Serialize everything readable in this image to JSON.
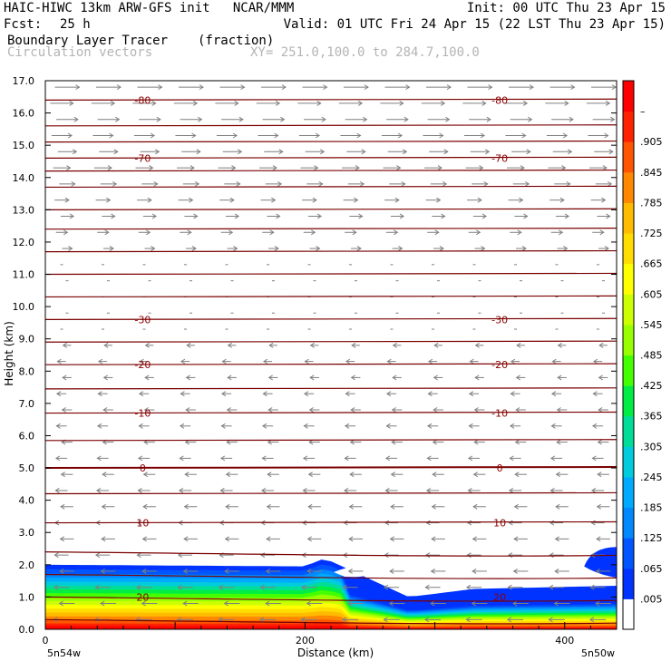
{
  "header": {
    "title": "HAIC-HIWC 13km ARW-GFS init   NCAR/MMM",
    "init": "Init: 00 UTC Thu 23 Apr 15",
    "fcst_label": "Fcst:",
    "fcst_value": "25 h",
    "valid": "Valid: 01 UTC Fri 24 Apr 15 (22 LST Thu 23 Apr 15)",
    "field": "Boundary Layer Tracer",
    "field_units": "(fraction)",
    "vectors": "Circulation vectors",
    "xy": "XY= 251.0,100.0 to 284.7,100.0"
  },
  "chart_data": {
    "type": "heatmap",
    "title": "Boundary Layer Tracer (fraction)",
    "xlabel": "Distance (km)",
    "ylabel": "Height (km)",
    "xlim": [
      0,
      440
    ],
    "ylim": [
      0,
      17
    ],
    "x_ticks": [
      {
        "value": 0,
        "label": "0"
      },
      {
        "value": 200,
        "label": "200"
      },
      {
        "value": 400,
        "label": "400"
      }
    ],
    "x_end_labels": {
      "left": "5n54w",
      "right": "5n50w"
    },
    "y_ticks": [
      "0.0",
      "1.0",
      "2.0",
      "3.0",
      "4.0",
      "5.0",
      "6.0",
      "7.0",
      "8.0",
      "9.0",
      "10.0",
      "11.0",
      "12.0",
      "13.0",
      "14.0",
      "15.0",
      "16.0",
      "17.0"
    ],
    "colorbar": {
      "labels": [
        ".005",
        ".065",
        ".125",
        ".185",
        ".245",
        ".305",
        ".365",
        ".425",
        ".485",
        ".545",
        ".605",
        ".665",
        ".725",
        ".785",
        ".845",
        ".905",
        "–"
      ],
      "colors": [
        "#ffffff",
        "#0033ff",
        "#0055ff",
        "#0088ff",
        "#00aaff",
        "#00ccdd",
        "#00dd99",
        "#00ee44",
        "#44ff00",
        "#99ff00",
        "#ccff00",
        "#ffff00",
        "#ffdd00",
        "#ffbb00",
        "#ff8800",
        "#ff5500",
        "#ff2200",
        "#ff0000"
      ]
    },
    "tracer_top_km": [
      {
        "x": 0,
        "y": 2.0
      },
      {
        "x": 200,
        "y": 1.95
      },
      {
        "x": 215,
        "y": 2.2
      },
      {
        "x": 280,
        "y": 1.0
      },
      {
        "x": 330,
        "y": 1.25
      },
      {
        "x": 440,
        "y": 1.35
      }
    ],
    "upper_tracer_patch": {
      "x": [
        415,
        440
      ],
      "y": [
        1.6,
        2.55
      ]
    },
    "temperature_contours": [
      {
        "value": -80,
        "label": "-80",
        "height_km": 16.4
      },
      {
        "value": -70,
        "label": "-70",
        "height_km": 14.6
      },
      {
        "value": -30,
        "label": "-30",
        "height_km": 9.6
      },
      {
        "value": -20,
        "label": "-20",
        "height_km": 8.2
      },
      {
        "value": -10,
        "label": "-10",
        "height_km": 6.7
      },
      {
        "value": 0,
        "label": "0",
        "height_km": 5.0
      },
      {
        "value": 10,
        "label": "10",
        "height_km": 3.3
      },
      {
        "value": 20,
        "label": "20",
        "height_km": 1.0
      }
    ],
    "vectors": {
      "upper": "eastward (left to right)",
      "lower": "westward (right to left)",
      "reversal_height_km": 11.5
    }
  }
}
